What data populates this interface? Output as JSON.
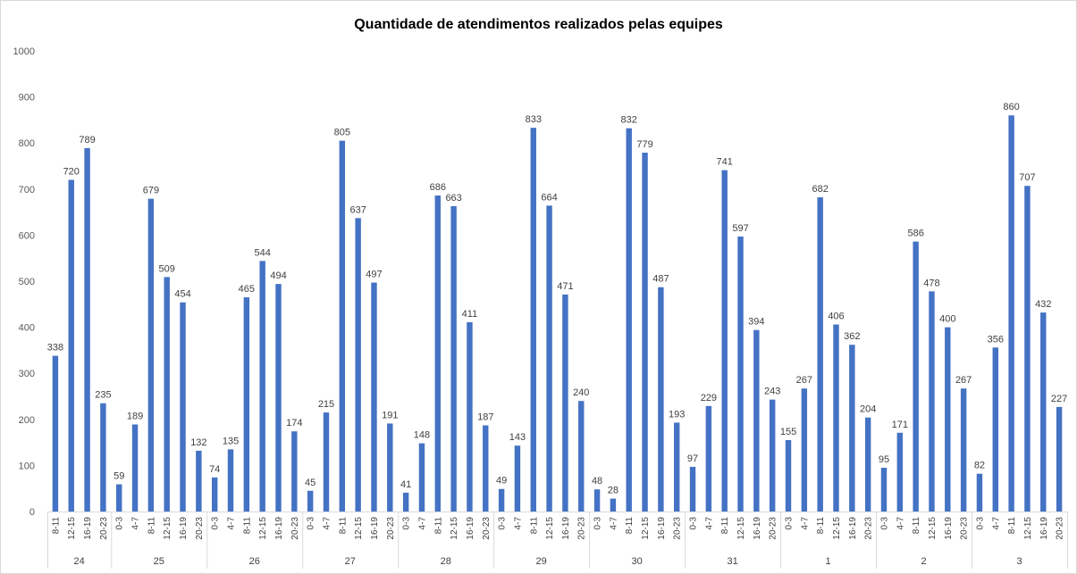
{
  "chart_data": {
    "type": "bar",
    "title": "Quantidade de atendimentos realizados pelas equipes",
    "xlabel": "",
    "ylabel": "",
    "ylim": [
      0,
      1000
    ],
    "yticks": [
      0,
      100,
      200,
      300,
      400,
      500,
      600,
      700,
      800,
      900,
      1000
    ],
    "grid": false,
    "legend": "none",
    "bar_color": "#4472c4",
    "groups": [
      {
        "label": "24",
        "bars": [
          {
            "category": "8-11",
            "value": 338
          },
          {
            "category": "12-15",
            "value": 720
          },
          {
            "category": "16-19",
            "value": 789
          },
          {
            "category": "20-23",
            "value": 235
          }
        ]
      },
      {
        "label": "25",
        "bars": [
          {
            "category": "0-3",
            "value": 59
          },
          {
            "category": "4-7",
            "value": 189
          },
          {
            "category": "8-11",
            "value": 679
          },
          {
            "category": "12-15",
            "value": 509
          },
          {
            "category": "16-19",
            "value": 454
          },
          {
            "category": "20-23",
            "value": 132
          }
        ]
      },
      {
        "label": "26",
        "bars": [
          {
            "category": "0-3",
            "value": 74
          },
          {
            "category": "4-7",
            "value": 135
          },
          {
            "category": "8-11",
            "value": 465
          },
          {
            "category": "12-15",
            "value": 544
          },
          {
            "category": "16-19",
            "value": 494
          },
          {
            "category": "20-23",
            "value": 174
          }
        ]
      },
      {
        "label": "27",
        "bars": [
          {
            "category": "0-3",
            "value": 45
          },
          {
            "category": "4-7",
            "value": 215
          },
          {
            "category": "8-11",
            "value": 805
          },
          {
            "category": "12-15",
            "value": 637
          },
          {
            "category": "16-19",
            "value": 497
          },
          {
            "category": "20-23",
            "value": 191
          }
        ]
      },
      {
        "label": "28",
        "bars": [
          {
            "category": "0-3",
            "value": 41
          },
          {
            "category": "4-7",
            "value": 148
          },
          {
            "category": "8-11",
            "value": 686
          },
          {
            "category": "12-15",
            "value": 663
          },
          {
            "category": "16-19",
            "value": 411
          },
          {
            "category": "20-23",
            "value": 187
          }
        ]
      },
      {
        "label": "29",
        "bars": [
          {
            "category": "0-3",
            "value": 49
          },
          {
            "category": "4-7",
            "value": 143
          },
          {
            "category": "8-11",
            "value": 833
          },
          {
            "category": "12-15",
            "value": 664
          },
          {
            "category": "16-19",
            "value": 471
          },
          {
            "category": "20-23",
            "value": 240
          }
        ]
      },
      {
        "label": "30",
        "bars": [
          {
            "category": "0-3",
            "value": 48
          },
          {
            "category": "4-7",
            "value": 28
          },
          {
            "category": "8-11",
            "value": 832
          },
          {
            "category": "12-15",
            "value": 779
          },
          {
            "category": "16-19",
            "value": 487
          },
          {
            "category": "20-23",
            "value": 193
          }
        ]
      },
      {
        "label": "31",
        "bars": [
          {
            "category": "0-3",
            "value": 97
          },
          {
            "category": "4-7",
            "value": 229
          },
          {
            "category": "8-11",
            "value": 741
          },
          {
            "category": "12-15",
            "value": 597
          },
          {
            "category": "16-19",
            "value": 394
          },
          {
            "category": "20-23",
            "value": 243
          }
        ]
      },
      {
        "label": "1",
        "bars": [
          {
            "category": "0-3",
            "value": 155
          },
          {
            "category": "4-7",
            "value": 267
          },
          {
            "category": "8-11",
            "value": 682
          },
          {
            "category": "12-15",
            "value": 406
          },
          {
            "category": "16-19",
            "value": 362
          },
          {
            "category": "20-23",
            "value": 204
          }
        ]
      },
      {
        "label": "2",
        "bars": [
          {
            "category": "0-3",
            "value": 95
          },
          {
            "category": "4-7",
            "value": 171
          },
          {
            "category": "8-11",
            "value": 586
          },
          {
            "category": "12-15",
            "value": 478
          },
          {
            "category": "16-19",
            "value": 400
          },
          {
            "category": "20-23",
            "value": 267
          }
        ]
      },
      {
        "label": "3",
        "bars": [
          {
            "category": "0-3",
            "value": 82
          },
          {
            "category": "4-7",
            "value": 356
          },
          {
            "category": "8-11",
            "value": 860
          },
          {
            "category": "12-15",
            "value": 707
          },
          {
            "category": "16-19",
            "value": 432
          },
          {
            "category": "20-23",
            "value": 227
          }
        ]
      }
    ]
  }
}
